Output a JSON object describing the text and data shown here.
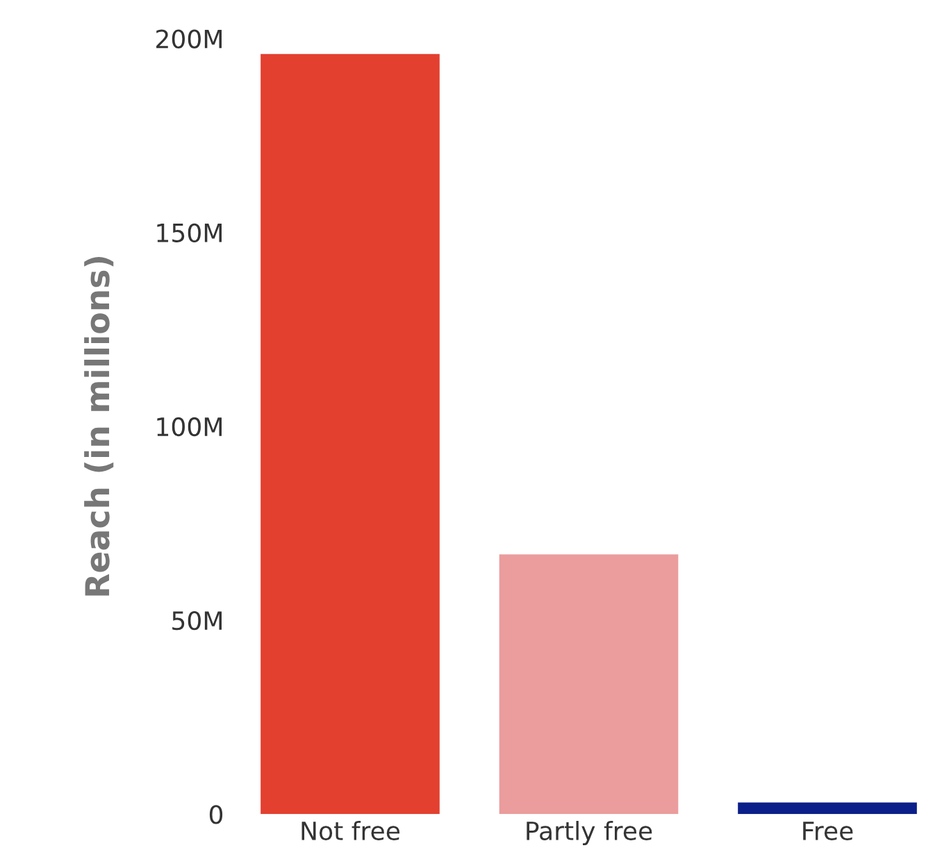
{
  "chart_data": {
    "type": "bar",
    "ylabel": "Reach (in millions)",
    "categories": [
      "Not free",
      "Partly free",
      "Free"
    ],
    "values": [
      196,
      67,
      3
    ],
    "colors": [
      "#e34030",
      "#eb9c9c",
      "#0b1f8a"
    ],
    "ylim": [
      0,
      200
    ],
    "yticks": [
      {
        "value": 0,
        "label": "0"
      },
      {
        "value": 50,
        "label": "50M"
      },
      {
        "value": 100,
        "label": "100M"
      },
      {
        "value": 150,
        "label": "150M"
      },
      {
        "value": 200,
        "label": "200M"
      }
    ],
    "grid": false
  }
}
